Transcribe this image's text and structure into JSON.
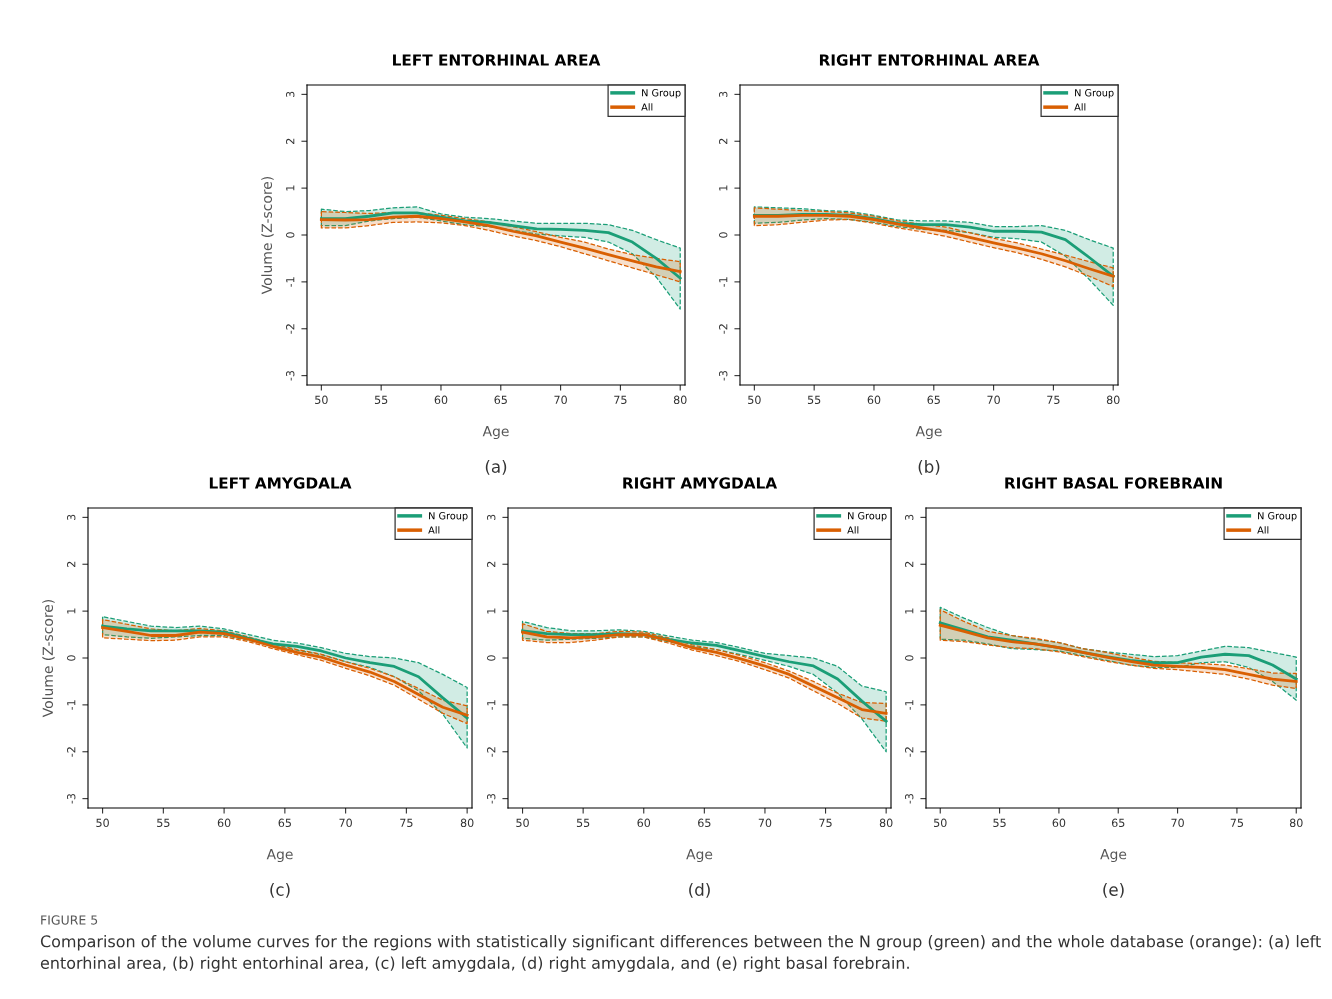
{
  "chart_data": [
    {
      "type": "line",
      "title": "LEFT ENTORHINAL AREA",
      "xlabel": "Age",
      "ylabel": "Volume (Z-score)",
      "annotations": [
        "(a)"
      ],
      "x": [
        50,
        52,
        54,
        56,
        58,
        60,
        62,
        64,
        66,
        68,
        70,
        72,
        74,
        76,
        78,
        80
      ],
      "xlim": [
        48.8,
        80.4
      ],
      "xticks": [
        50,
        55,
        60,
        65,
        70,
        75,
        80
      ],
      "ylim": [
        -3.2,
        3.2
      ],
      "yticks": [
        -3,
        -2,
        -1,
        0,
        1,
        2,
        3
      ],
      "legend": "top right",
      "grid": false,
      "line_style": "solid",
      "series": [
        {
          "name": "N Group",
          "color": "#1b9e77",
          "values": [
            0.35,
            0.35,
            0.4,
            0.47,
            0.47,
            0.38,
            0.3,
            0.27,
            0.2,
            0.13,
            0.12,
            0.1,
            0.05,
            -0.15,
            -0.5,
            -0.92
          ],
          "lower": [
            0.2,
            0.2,
            0.3,
            0.35,
            0.38,
            0.3,
            0.22,
            0.18,
            0.1,
            0.02,
            -0.02,
            -0.05,
            -0.15,
            -0.4,
            -0.9,
            -1.58
          ],
          "upper": [
            0.55,
            0.5,
            0.52,
            0.58,
            0.6,
            0.45,
            0.38,
            0.35,
            0.3,
            0.25,
            0.25,
            0.25,
            0.22,
            0.1,
            -0.1,
            -0.28
          ]
        },
        {
          "name": "All",
          "color": "#d95f02",
          "values": [
            0.33,
            0.32,
            0.33,
            0.38,
            0.4,
            0.35,
            0.28,
            0.2,
            0.08,
            -0.02,
            -0.15,
            -0.28,
            -0.42,
            -0.55,
            -0.68,
            -0.78
          ],
          "lower": [
            0.15,
            0.15,
            0.2,
            0.27,
            0.28,
            0.26,
            0.2,
            0.1,
            -0.02,
            -0.12,
            -0.25,
            -0.4,
            -0.55,
            -0.7,
            -0.85,
            -1.0
          ],
          "upper": [
            0.5,
            0.48,
            0.46,
            0.48,
            0.48,
            0.42,
            0.35,
            0.28,
            0.18,
            0.07,
            -0.05,
            -0.15,
            -0.3,
            -0.42,
            -0.5,
            -0.57
          ]
        }
      ]
    },
    {
      "type": "line",
      "title": "RIGHT ENTORHINAL AREA",
      "xlabel": "Age",
      "annotations": [
        "(b)"
      ],
      "x": [
        50,
        52,
        54,
        56,
        58,
        60,
        62,
        64,
        66,
        68,
        70,
        72,
        74,
        76,
        78,
        80
      ],
      "xlim": [
        48.8,
        80.4
      ],
      "xticks": [
        50,
        55,
        60,
        65,
        70,
        75,
        80
      ],
      "ylim": [
        -3.2,
        3.2
      ],
      "yticks": [
        -3,
        -2,
        -1,
        0,
        1,
        2,
        3
      ],
      "legend": "top right",
      "grid": false,
      "line_style": "solid",
      "series": [
        {
          "name": "N Group",
          "color": "#1b9e77",
          "values": [
            0.42,
            0.42,
            0.44,
            0.44,
            0.42,
            0.35,
            0.25,
            0.22,
            0.22,
            0.17,
            0.08,
            0.08,
            0.06,
            -0.1,
            -0.48,
            -0.88
          ],
          "lower": [
            0.25,
            0.27,
            0.32,
            0.35,
            0.33,
            0.27,
            0.18,
            0.12,
            0.1,
            0.05,
            -0.05,
            -0.08,
            -0.15,
            -0.45,
            -0.95,
            -1.5
          ],
          "upper": [
            0.6,
            0.58,
            0.56,
            0.52,
            0.5,
            0.42,
            0.32,
            0.3,
            0.3,
            0.27,
            0.18,
            0.18,
            0.2,
            0.1,
            -0.1,
            -0.28
          ]
        },
        {
          "name": "All",
          "color": "#d95f02",
          "values": [
            0.4,
            0.4,
            0.42,
            0.42,
            0.4,
            0.33,
            0.23,
            0.15,
            0.07,
            -0.05,
            -0.17,
            -0.28,
            -0.4,
            -0.55,
            -0.72,
            -0.88
          ],
          "lower": [
            0.2,
            0.22,
            0.27,
            0.32,
            0.33,
            0.25,
            0.15,
            0.07,
            -0.03,
            -0.15,
            -0.27,
            -0.38,
            -0.52,
            -0.68,
            -0.88,
            -1.1
          ],
          "upper": [
            0.58,
            0.55,
            0.52,
            0.5,
            0.47,
            0.4,
            0.3,
            0.23,
            0.17,
            0.05,
            -0.07,
            -0.17,
            -0.3,
            -0.43,
            -0.57,
            -0.7
          ]
        }
      ]
    },
    {
      "type": "line",
      "title": "LEFT AMYGDALA",
      "xlabel": "Age",
      "ylabel": "Volume (Z-score)",
      "annotations": [
        "(c)"
      ],
      "x": [
        50,
        52,
        54,
        56,
        58,
        60,
        62,
        64,
        66,
        68,
        70,
        72,
        74,
        76,
        78,
        80
      ],
      "xlim": [
        48.8,
        80.4
      ],
      "xticks": [
        50,
        55,
        60,
        65,
        70,
        75,
        80
      ],
      "ylim": [
        -3.2,
        3.2
      ],
      "yticks": [
        -3,
        -2,
        -1,
        0,
        1,
        2,
        3
      ],
      "legend": "top right",
      "grid": false,
      "line_style": "solid",
      "series": [
        {
          "name": "N Group",
          "color": "#1b9e77",
          "values": [
            0.68,
            0.62,
            0.58,
            0.58,
            0.58,
            0.55,
            0.42,
            0.3,
            0.25,
            0.15,
            0.0,
            -0.1,
            -0.18,
            -0.4,
            -0.85,
            -1.28
          ],
          "lower": [
            0.5,
            0.45,
            0.42,
            0.45,
            0.48,
            0.48,
            0.38,
            0.25,
            0.17,
            0.07,
            -0.08,
            -0.2,
            -0.4,
            -0.7,
            -1.2,
            -1.92
          ],
          "upper": [
            0.88,
            0.78,
            0.68,
            0.65,
            0.68,
            0.62,
            0.5,
            0.38,
            0.32,
            0.22,
            0.1,
            0.03,
            0.0,
            -0.1,
            -0.35,
            -0.63
          ]
        },
        {
          "name": "All",
          "color": "#d95f02",
          "values": [
            0.65,
            0.57,
            0.48,
            0.48,
            0.55,
            0.52,
            0.4,
            0.25,
            0.12,
            0.02,
            -0.15,
            -0.3,
            -0.5,
            -0.78,
            -1.05,
            -1.22
          ],
          "lower": [
            0.43,
            0.4,
            0.37,
            0.38,
            0.45,
            0.45,
            0.35,
            0.2,
            0.07,
            -0.05,
            -0.22,
            -0.38,
            -0.58,
            -0.88,
            -1.18,
            -1.4
          ],
          "upper": [
            0.82,
            0.72,
            0.62,
            0.58,
            0.63,
            0.58,
            0.45,
            0.3,
            0.18,
            0.08,
            -0.08,
            -0.22,
            -0.4,
            -0.65,
            -0.9,
            -1.02
          ]
        }
      ]
    },
    {
      "type": "line",
      "title": "RIGHT AMYGDALA",
      "xlabel": "Age",
      "annotations": [
        "(d)"
      ],
      "x": [
        50,
        52,
        54,
        56,
        58,
        60,
        62,
        64,
        66,
        68,
        70,
        72,
        74,
        76,
        78,
        80
      ],
      "xlim": [
        48.8,
        80.4
      ],
      "xticks": [
        50,
        55,
        60,
        65,
        70,
        75,
        80
      ],
      "ylim": [
        -3.2,
        3.2
      ],
      "yticks": [
        -3,
        -2,
        -1,
        0,
        1,
        2,
        3
      ],
      "legend": "top right",
      "grid": false,
      "line_style": "solid",
      "series": [
        {
          "name": "N Group",
          "color": "#1b9e77",
          "values": [
            0.58,
            0.52,
            0.5,
            0.5,
            0.52,
            0.5,
            0.4,
            0.32,
            0.27,
            0.15,
            0.03,
            -0.08,
            -0.17,
            -0.45,
            -0.92,
            -1.35
          ],
          "lower": [
            0.42,
            0.38,
            0.4,
            0.42,
            0.45,
            0.45,
            0.35,
            0.25,
            0.18,
            0.07,
            -0.05,
            -0.18,
            -0.35,
            -0.75,
            -1.3,
            -2.0
          ],
          "upper": [
            0.78,
            0.65,
            0.58,
            0.58,
            0.6,
            0.57,
            0.47,
            0.38,
            0.33,
            0.22,
            0.1,
            0.05,
            0.0,
            -0.18,
            -0.6,
            -0.72
          ]
        },
        {
          "name": "All",
          "color": "#d95f02",
          "values": [
            0.55,
            0.45,
            0.43,
            0.45,
            0.5,
            0.5,
            0.38,
            0.22,
            0.12,
            -0.02,
            -0.17,
            -0.35,
            -0.6,
            -0.85,
            -1.1,
            -1.18
          ],
          "lower": [
            0.38,
            0.33,
            0.33,
            0.38,
            0.45,
            0.45,
            0.32,
            0.17,
            0.05,
            -0.08,
            -0.25,
            -0.43,
            -0.7,
            -0.97,
            -1.28,
            -1.35
          ],
          "upper": [
            0.73,
            0.57,
            0.52,
            0.52,
            0.57,
            0.55,
            0.43,
            0.28,
            0.18,
            0.05,
            -0.1,
            -0.28,
            -0.5,
            -0.75,
            -0.95,
            -0.97
          ]
        }
      ]
    },
    {
      "type": "line",
      "title": "RIGHT BASAL FOREBRAIN",
      "xlabel": "Age",
      "annotations": [
        "(e)",
        "FIGURE 5",
        "Comparison of the volume curves for the regions with statistically significant differences between the N group (green) and the whole database (orange): (a) left entorhinal area, (b) right entorhinal area, (c) left amygdala, (d) right amygdala, and (e) right basal forebrain."
      ],
      "x": [
        50,
        52,
        54,
        56,
        58,
        60,
        62,
        64,
        66,
        68,
        70,
        72,
        74,
        76,
        78,
        80
      ],
      "xlim": [
        48.8,
        80.4
      ],
      "xticks": [
        50,
        55,
        60,
        65,
        70,
        75,
        80
      ],
      "ylim": [
        -3.2,
        3.2
      ],
      "yticks": [
        -3,
        -2,
        -1,
        0,
        1,
        2,
        3
      ],
      "legend": "top right",
      "grid": false,
      "line_style": "solid",
      "series": [
        {
          "name": "N Group",
          "color": "#1b9e77",
          "values": [
            0.75,
            0.6,
            0.45,
            0.38,
            0.3,
            0.22,
            0.12,
            0.03,
            -0.05,
            -0.1,
            -0.1,
            0.02,
            0.08,
            0.05,
            -0.15,
            -0.45
          ],
          "lower": [
            0.4,
            0.38,
            0.3,
            0.2,
            0.18,
            0.15,
            0.05,
            -0.05,
            -0.15,
            -0.2,
            -0.2,
            -0.1,
            -0.08,
            -0.2,
            -0.5,
            -0.9
          ],
          "upper": [
            1.08,
            0.85,
            0.65,
            0.48,
            0.4,
            0.33,
            0.2,
            0.13,
            0.08,
            0.03,
            0.05,
            0.15,
            0.25,
            0.22,
            0.12,
            0.02
          ]
        },
        {
          "name": "All",
          "color": "#d95f02",
          "values": [
            0.7,
            0.57,
            0.43,
            0.35,
            0.3,
            0.22,
            0.12,
            0.02,
            -0.07,
            -0.15,
            -0.18,
            -0.2,
            -0.25,
            -0.35,
            -0.45,
            -0.5
          ],
          "lower": [
            0.38,
            0.35,
            0.28,
            0.22,
            0.2,
            0.13,
            0.03,
            -0.07,
            -0.15,
            -0.22,
            -0.25,
            -0.3,
            -0.35,
            -0.45,
            -0.58,
            -0.65
          ],
          "upper": [
            1.03,
            0.78,
            0.57,
            0.48,
            0.42,
            0.33,
            0.2,
            0.12,
            0.02,
            -0.07,
            -0.1,
            -0.12,
            -0.15,
            -0.23,
            -0.32,
            -0.33
          ]
        }
      ]
    }
  ]
}
